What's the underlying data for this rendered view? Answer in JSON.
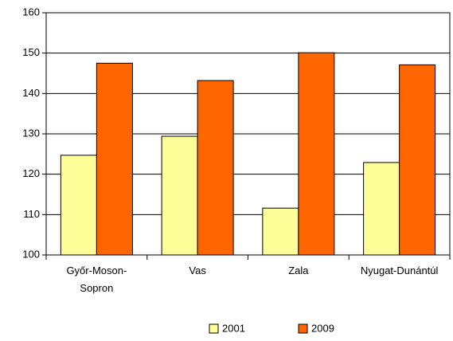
{
  "chart_data": {
    "type": "bar",
    "categories": [
      "Győr-Moson-Sopron",
      "Vas",
      "Zala",
      "Nyugat-Dunántúl"
    ],
    "series": [
      {
        "name": "2001",
        "color": "#ffff99",
        "values": [
          124.7,
          129.4,
          111.6,
          122.9
        ]
      },
      {
        "name": "2009",
        "color": "#ff6600",
        "values": [
          147.5,
          143.2,
          150.1,
          147.1
        ]
      }
    ],
    "ylim": [
      100,
      160
    ],
    "yticks": [
      100,
      110,
      120,
      130,
      140,
      150,
      160
    ],
    "grid": true,
    "legend": "bottom"
  }
}
